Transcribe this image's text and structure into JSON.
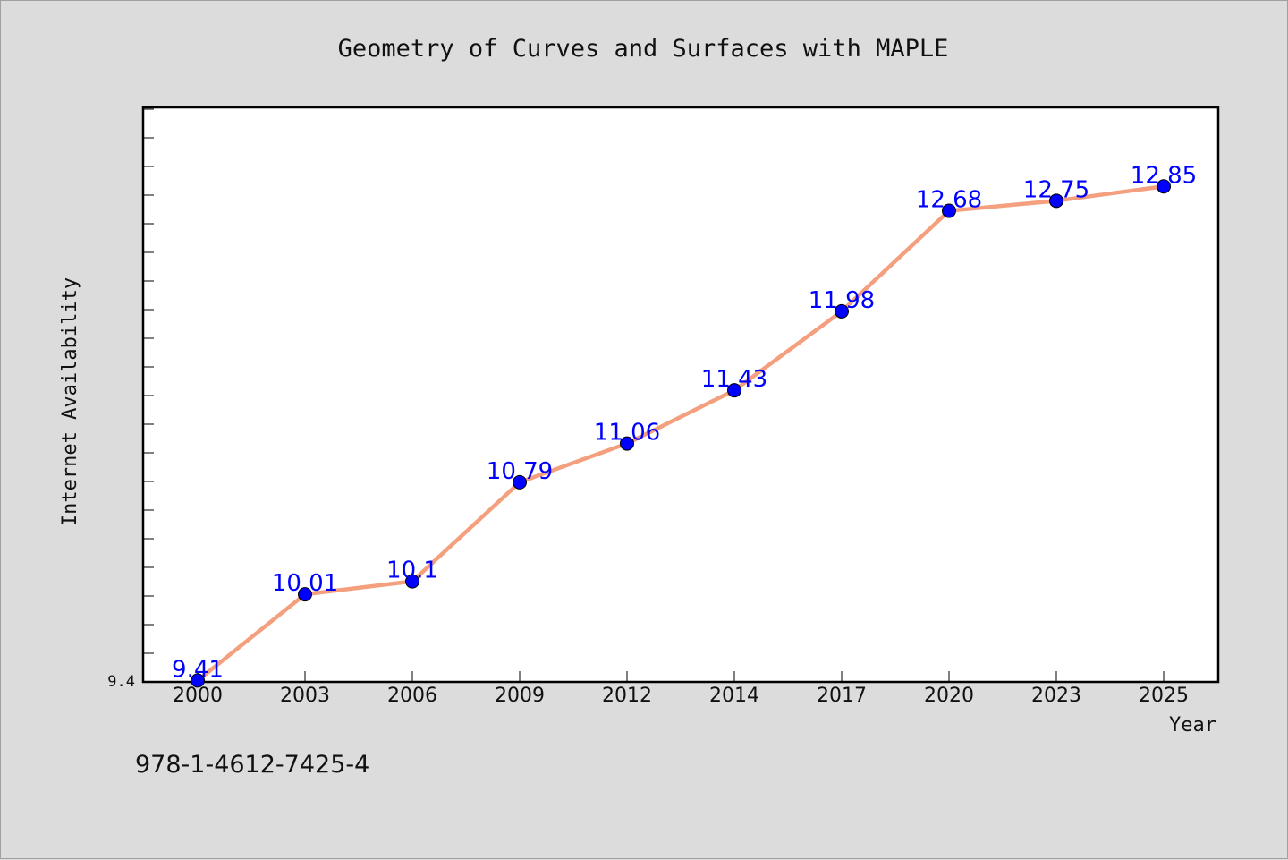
{
  "footer": "978-1-4612-7425-4",
  "colors": {
    "background": "#dcdcdc",
    "plot_background": "#ffffff",
    "line": "#f4a07f",
    "marker": "#0000ff",
    "data_label": "#0000ff"
  },
  "chart_data": {
    "type": "line",
    "title": "Geometry of Curves and Surfaces with MAPLE",
    "xlabel": "Year",
    "ylabel": "Internet Availability",
    "categories": [
      "2000",
      "2003",
      "2006",
      "2009",
      "2012",
      "2014",
      "2017",
      "2020",
      "2023",
      "2025"
    ],
    "series": [
      {
        "values": [
          9.41,
          10.01,
          10.1,
          10.79,
          11.06,
          11.43,
          11.98,
          12.68,
          12.75,
          12.85
        ]
      }
    ],
    "data_labels": [
      "9.41",
      "10.01",
      "10.1",
      "10.79",
      "11.06",
      "11.43",
      "11.98",
      "12.68",
      "12.75",
      "12.85"
    ],
    "yticks": [
      "9.4"
    ],
    "ylim": [
      9.4,
      13.4
    ],
    "grid": false,
    "legend": false
  }
}
